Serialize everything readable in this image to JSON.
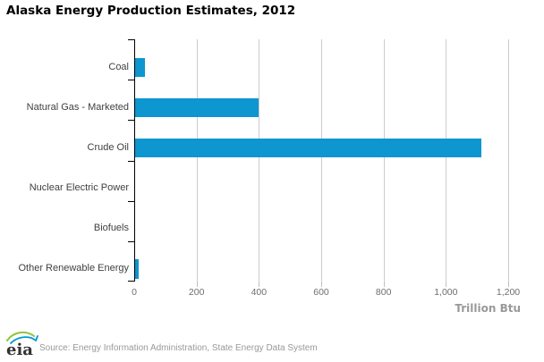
{
  "title": "Alaska Energy Production Estimates, 2012",
  "footer": {
    "source": "Source: Energy Information Administration, State Energy Data System",
    "logo_text": "eia"
  },
  "colors": {
    "bar": "#0d96d0",
    "gridline": "#cccccc",
    "axis": "#000000",
    "category_label": "#404040",
    "tick_label": "#6e6e6e",
    "axis_title": "#999999",
    "source_text": "#999999",
    "logo_green": "#8dc63f",
    "logo_blue": "#0096d7"
  },
  "chart_data": {
    "type": "bar",
    "orientation": "horizontal",
    "title": "Alaska Energy Production Estimates, 2012",
    "categories": [
      "Coal",
      "Natural Gas - Marketed",
      "Crude Oil",
      "Nuclear Electric Power",
      "Biofuels",
      "Other Renewable Energy"
    ],
    "values": [
      31,
      396,
      1112,
      0,
      0,
      12
    ],
    "xlabel": "Trillion Btu",
    "ylabel": "",
    "xlim": [
      0,
      1200
    ],
    "x_tick_values": [
      0,
      200,
      400,
      600,
      800,
      1000,
      1200
    ],
    "x_tick_labels": [
      "0",
      "200",
      "400",
      "600",
      "800",
      "1,000",
      "1,200"
    ],
    "grid": "vertical-only",
    "legend": "none",
    "bar_color": "#0d96d0"
  }
}
